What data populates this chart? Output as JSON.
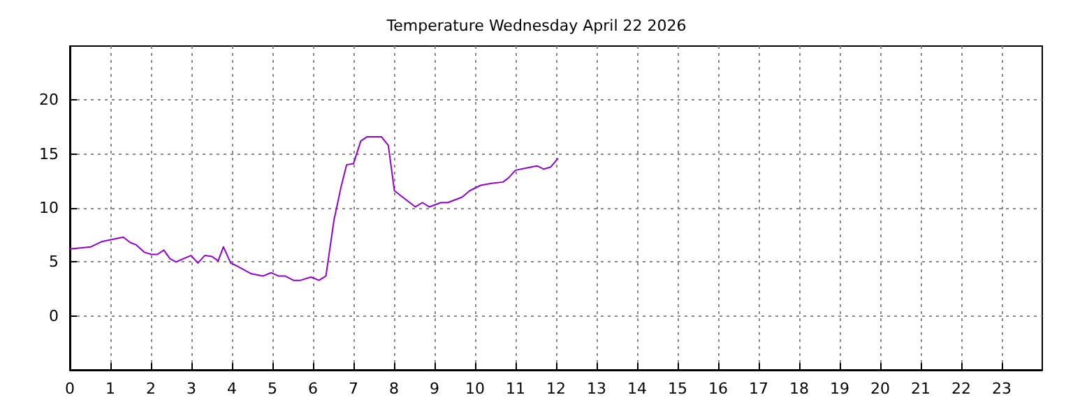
{
  "chart_data": {
    "type": "line",
    "title": "Temperature Wednesday April 22 2026",
    "x": [
      0,
      0.52,
      0.8,
      1.32,
      1.49,
      1.63,
      1.84,
      2.01,
      2.16,
      2.32,
      2.47,
      2.62,
      2.99,
      3.16,
      3.33,
      3.51,
      3.66,
      3.79,
      3.97,
      4.14,
      4.48,
      4.77,
      4.97,
      5.15,
      5.31,
      5.52,
      5.69,
      5.95,
      6.15,
      6.32,
      6.52,
      6.69,
      6.83,
      7.0,
      7.18,
      7.34,
      7.69,
      7.86,
      8.01,
      8.18,
      8.53,
      8.7,
      8.87,
      9.16,
      9.33,
      9.68,
      9.87,
      10.14,
      10.43,
      10.69,
      10.83,
      11.0,
      11.53,
      11.7,
      11.87,
      12.05
    ],
    "series": [
      {
        "color": "#9400d3",
        "values": [
          6.2,
          6.4,
          6.9,
          7.3,
          6.8,
          6.6,
          5.9,
          5.7,
          5.7,
          6.1,
          5.3,
          5.0,
          5.6,
          4.9,
          5.6,
          5.5,
          5.1,
          6.4,
          4.9,
          4.6,
          3.9,
          3.7,
          4.0,
          3.7,
          3.7,
          3.3,
          3.3,
          3.6,
          3.3,
          3.7,
          8.9,
          11.9,
          14.0,
          14.1,
          16.2,
          16.6,
          16.6,
          15.8,
          11.6,
          11.1,
          10.1,
          10.5,
          10.1,
          10.5,
          10.5,
          11.0,
          11.6,
          12.1,
          12.3,
          12.4,
          12.8,
          13.5,
          13.9,
          13.6,
          13.8,
          14.6
        ]
      }
    ],
    "xlim": [
      0,
      24
    ],
    "xticks": [
      0,
      1,
      2,
      3,
      4,
      5,
      6,
      7,
      8,
      9,
      10,
      11,
      12,
      13,
      14,
      15,
      16,
      17,
      18,
      19,
      20,
      21,
      22,
      23
    ],
    "ylim": [
      -5,
      25
    ],
    "yticks": [
      0,
      5,
      10,
      15,
      20
    ],
    "grid": true,
    "marker": "none",
    "line_style": "solid"
  }
}
